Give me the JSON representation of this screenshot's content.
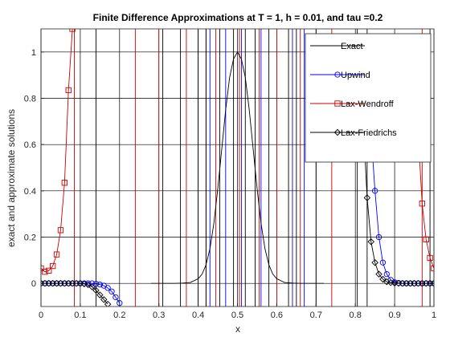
{
  "chart_data": {
    "type": "line",
    "title": "Finite Difference Approximations at T = 1, h = 0.01, and tau =0.2",
    "xlabel": "x",
    "ylabel": "exact and approximate solutions",
    "xlim": [
      0,
      1
    ],
    "ylim": [
      -0.1,
      1.1
    ],
    "xticks": [
      "0",
      "0.1",
      "0.2",
      "0.3",
      "0.4",
      "0.5",
      "0.6",
      "0.7",
      "0.8",
      "0.9",
      "1"
    ],
    "yticks": [
      "0",
      "0.2",
      "0.4",
      "0.6",
      "0.8",
      "1"
    ],
    "grid": true,
    "legend_position": "top-right",
    "series": [
      {
        "name": "Exact",
        "color": "#000000",
        "marker": "none",
        "x": [
          0.28,
          0.3,
          0.32,
          0.34,
          0.36,
          0.38,
          0.4,
          0.41,
          0.42,
          0.43,
          0.44,
          0.45,
          0.46,
          0.47,
          0.48,
          0.49,
          0.5,
          0.51,
          0.52,
          0.53,
          0.54,
          0.55,
          0.56,
          0.57,
          0.58,
          0.59,
          0.6,
          0.62,
          0.64,
          0.66,
          0.68,
          0.7,
          0.72
        ],
        "y": [
          0.0,
          0.0,
          0.0,
          0.0,
          0.001,
          0.004,
          0.02,
          0.04,
          0.08,
          0.15,
          0.26,
          0.41,
          0.58,
          0.75,
          0.89,
          0.97,
          1.0,
          0.97,
          0.89,
          0.75,
          0.58,
          0.41,
          0.26,
          0.15,
          0.08,
          0.04,
          0.02,
          0.004,
          0.001,
          0.0,
          0.0,
          0.0,
          0.0
        ]
      },
      {
        "name": "Upwind",
        "color": "#0000ff",
        "marker": "circle",
        "x": [
          0.0,
          0.01,
          0.02,
          0.03,
          0.04,
          0.05,
          0.06,
          0.07,
          0.08,
          0.09,
          0.1,
          0.11,
          0.12,
          0.13,
          0.14,
          0.15,
          0.16,
          0.17,
          0.18,
          0.19,
          0.2,
          0.83,
          0.84,
          0.85,
          0.86,
          0.87,
          0.88,
          0.89,
          0.9,
          0.91,
          0.92,
          0.93,
          0.94,
          0.95,
          0.96,
          0.97,
          0.98,
          0.99,
          1.0
        ],
        "y": [
          0.0,
          0.0,
          0.0,
          0.0,
          0.0,
          0.0,
          0.0,
          0.0,
          0.0,
          0.0,
          0.0,
          0.0,
          0.0,
          0.0,
          -0.002,
          -0.005,
          -0.01,
          -0.02,
          -0.035,
          -0.06,
          -0.085,
          0.9,
          0.65,
          0.4,
          0.2,
          0.09,
          0.04,
          0.015,
          0.005,
          0.002,
          0.0,
          0.0,
          0.0,
          0.0,
          0.0,
          0.0,
          0.0,
          0.0,
          0.0
        ]
      },
      {
        "name": "Lax-Wendroff",
        "color": "#cc0000",
        "marker": "square",
        "x": [
          0.0,
          0.01,
          0.02,
          0.03,
          0.04,
          0.05,
          0.06,
          0.07,
          0.08,
          0.96,
          0.97,
          0.98,
          0.99,
          1.0
        ],
        "y": [
          0.065,
          0.05,
          0.055,
          0.075,
          0.125,
          0.23,
          0.435,
          0.835,
          1.1,
          0.64,
          0.345,
          0.19,
          0.11,
          0.065
        ]
      },
      {
        "name": "Lax-Friedrichs",
        "color": "#000000",
        "marker": "diamond",
        "x": [
          0.0,
          0.01,
          0.02,
          0.03,
          0.04,
          0.05,
          0.06,
          0.07,
          0.08,
          0.09,
          0.1,
          0.11,
          0.12,
          0.13,
          0.14,
          0.15,
          0.16,
          0.17,
          0.82,
          0.83,
          0.84,
          0.85,
          0.86,
          0.87,
          0.88,
          0.89,
          0.9,
          0.91,
          0.92,
          0.93,
          0.94,
          0.95,
          0.96,
          0.97,
          0.98,
          0.99,
          1.0
        ],
        "y": [
          0.0,
          0.0,
          0.0,
          0.0,
          0.0,
          0.0,
          0.0,
          0.0,
          0.0,
          0.0,
          0.0,
          -0.002,
          -0.006,
          -0.015,
          -0.03,
          -0.05,
          -0.07,
          -0.09,
          0.7,
          0.37,
          0.18,
          0.09,
          0.04,
          0.018,
          0.007,
          0.003,
          0.001,
          0.0,
          0.0,
          0.0,
          0.0,
          0.0,
          0.0,
          0.0,
          0.0,
          0.0,
          0.0
        ]
      }
    ],
    "vertical_lines": [
      {
        "color": "#cc0000",
        "x": [
          0.085,
          0.24,
          0.3,
          0.37,
          0.42,
          0.445,
          0.505,
          0.555,
          0.6,
          0.66,
          0.74,
          0.97
        ]
      },
      {
        "color": "#0000ff",
        "x": [
          0.43,
          0.47,
          0.51,
          0.56,
          0.64,
          0.67
        ]
      },
      {
        "color": "#000000",
        "x": [
          0.14,
          0.31,
          0.355,
          0.4,
          0.42,
          0.455,
          0.49,
          0.52,
          0.545,
          0.58,
          0.63,
          0.65,
          0.7,
          0.805,
          0.83,
          0.99
        ]
      }
    ]
  }
}
